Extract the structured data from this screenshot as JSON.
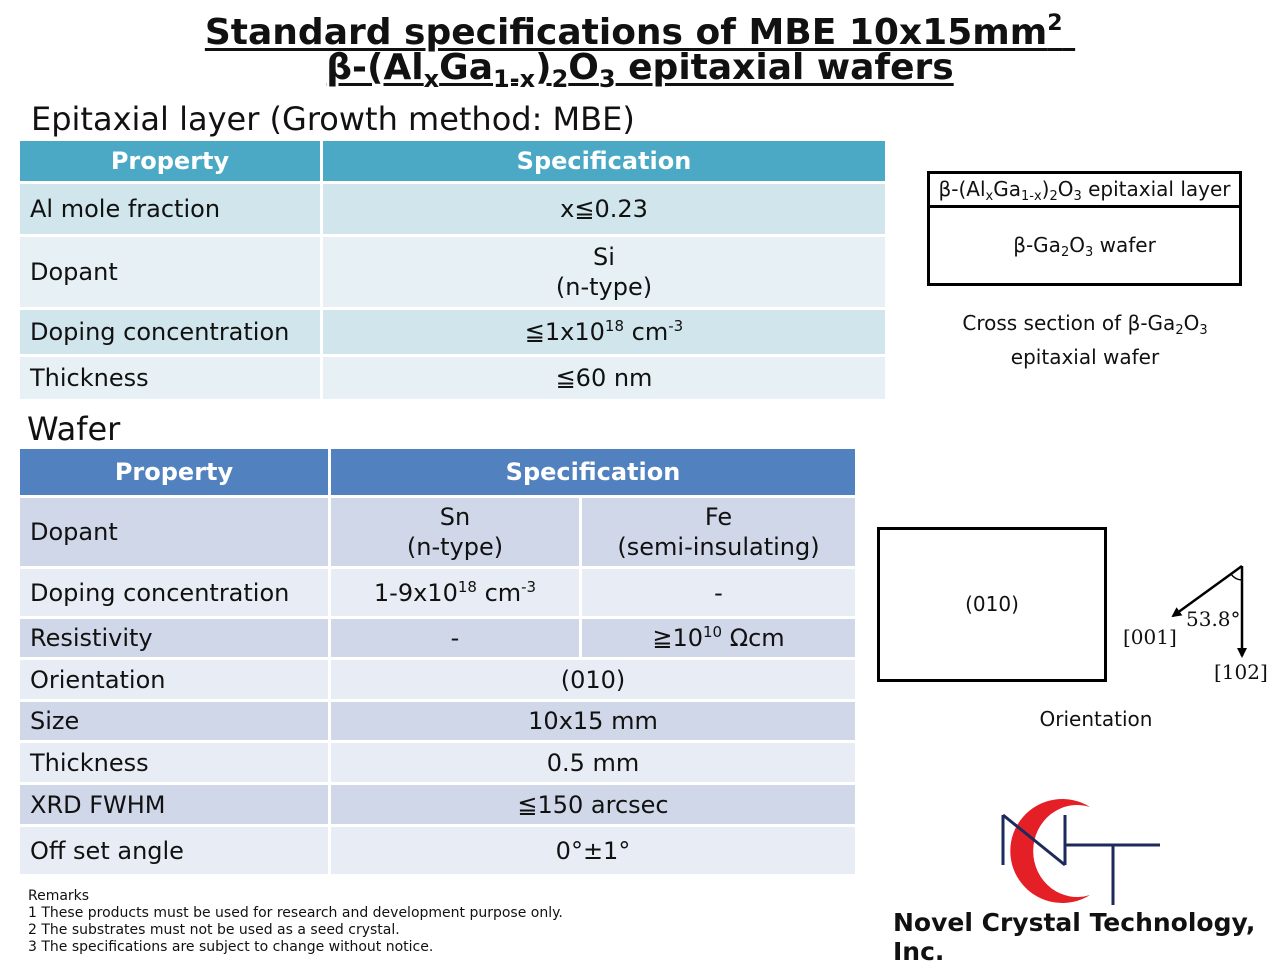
{
  "title": {
    "line1_text": "Standard specifications of MBE 10x15mm",
    "line1_sup": "2",
    "line2_a": "β-(Al",
    "line2_sub1": "x",
    "line2_b": "Ga",
    "line2_sub2": "1-x",
    "line2_c": ")",
    "line2_sub3": "2",
    "line2_d": "O",
    "line2_sub4": "3",
    "line2_e": " epitaxial wafers"
  },
  "epi_section": {
    "heading": "Epitaxial layer (Growth method: MBE)",
    "headers": [
      "Property",
      "Specification"
    ],
    "rows": {
      "al_label": "Al mole fraction",
      "al_value": "x≦0.23",
      "dopant_label": "Dopant",
      "dopant_line1": "Si",
      "dopant_line2": "(n-type)",
      "doping_label": "Doping concentration",
      "doping_pre": "≦1x10",
      "doping_exp": "18",
      "doping_mid": " cm",
      "doping_unit_exp": "-3",
      "thickness_label": "Thickness",
      "thickness_value": "≦60 nm"
    }
  },
  "wafer_section": {
    "heading": "Wafer",
    "headers": [
      "Property",
      "Specification"
    ],
    "rows": {
      "dopant_label": "Dopant",
      "sn_line1": "Sn",
      "sn_line2": "(n-type)",
      "fe_line1": "Fe",
      "fe_line2": "(semi-insulating)",
      "doping_label": "Doping concentration",
      "doping_sn_pre": "1-9x10",
      "doping_sn_exp": "18",
      "doping_sn_mid": " cm",
      "doping_sn_unit_exp": "-3",
      "doping_fe": "-",
      "resistivity_label": "Resistivity",
      "resistivity_sn": "-",
      "resistivity_fe_pre": "≧10",
      "resistivity_fe_exp": "10",
      "resistivity_fe_unit": " Ωcm",
      "orientation_label": "Orientation",
      "orientation_value": "(010)",
      "size_label": "Size",
      "size_value": "10x15 mm",
      "thickness_label": "Thickness",
      "thickness_value": "0.5 mm",
      "xrd_label": "XRD FWHM",
      "xrd_value": "≦150 arcsec",
      "offset_label": "Off set angle",
      "offset_value": "0°±1°"
    }
  },
  "cross_section": {
    "layer_a": "β-(Al",
    "layer_sub1": "x",
    "layer_b": "Ga",
    "layer_sub2": "1-x",
    "layer_c": ")",
    "layer_sub3": "2",
    "layer_d": "O",
    "layer_sub4": "3",
    "layer_e": " epitaxial layer",
    "wafer_a": "β-Ga",
    "wafer_sub1": "2",
    "wafer_b": "O",
    "wafer_sub2": "3",
    "wafer_c": " wafer",
    "caption_a": "Cross section of β-Ga",
    "caption_sub1": "2",
    "caption_b": "O",
    "caption_sub2": "3",
    "caption_line2": "epitaxial wafer"
  },
  "orientation_diagram": {
    "plane_label": "(010)",
    "angle_label": "53.8°",
    "dir_001": "[001]",
    "dir_102": "[102]",
    "caption": "Orientation"
  },
  "remarks": {
    "heading": "Remarks",
    "items": [
      "1 These products must be used for research and development purpose only.",
      "2 The substrates must not be used as a seed crystal.",
      "3 The specifications are subject to change without notice."
    ]
  },
  "company": {
    "logo_letters": "NCT",
    "name": "Novel Crystal Technology, Inc."
  },
  "colors": {
    "epi_header": "#4ba9c6",
    "wafer_header": "#5181bf",
    "logo_red": "#e41f26",
    "logo_navy": "#1f2a5c"
  }
}
